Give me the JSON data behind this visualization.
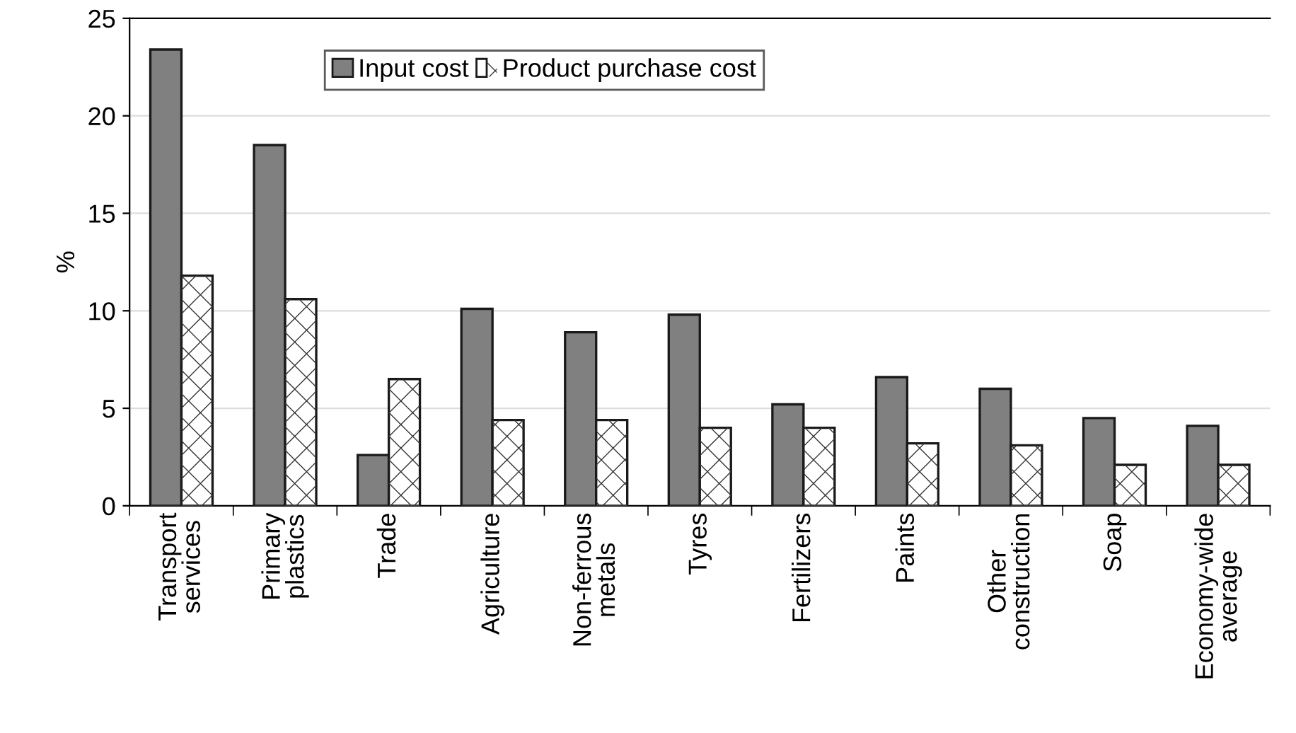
{
  "chart_data": {
    "type": "bar",
    "ylabel": "%",
    "categories": [
      "Transport\nservices",
      "Primary\nplastics",
      "Trade",
      "Agriculture",
      "Non-ferrous\nmetals",
      "Tyres",
      "Fertilizers",
      "Paints",
      "Other\nconstruction",
      "Soap",
      "Economy-wide\naverage"
    ],
    "series": [
      {
        "name": "Input cost",
        "color": "#808080",
        "values": [
          23.4,
          18.5,
          2.6,
          10.1,
          8.9,
          9.8,
          5.2,
          6.6,
          6.0,
          4.5,
          4.1
        ]
      },
      {
        "name": "Product purchase cost",
        "color": "#ffffff",
        "values": [
          11.8,
          10.6,
          6.5,
          4.4,
          4.4,
          4.0,
          4.0,
          3.2,
          3.1,
          2.1,
          2.1
        ]
      }
    ],
    "ylim": [
      0,
      25
    ],
    "yticks": [
      0,
      5,
      10,
      15,
      20,
      25
    ],
    "grid": "y",
    "legend": "top left"
  }
}
